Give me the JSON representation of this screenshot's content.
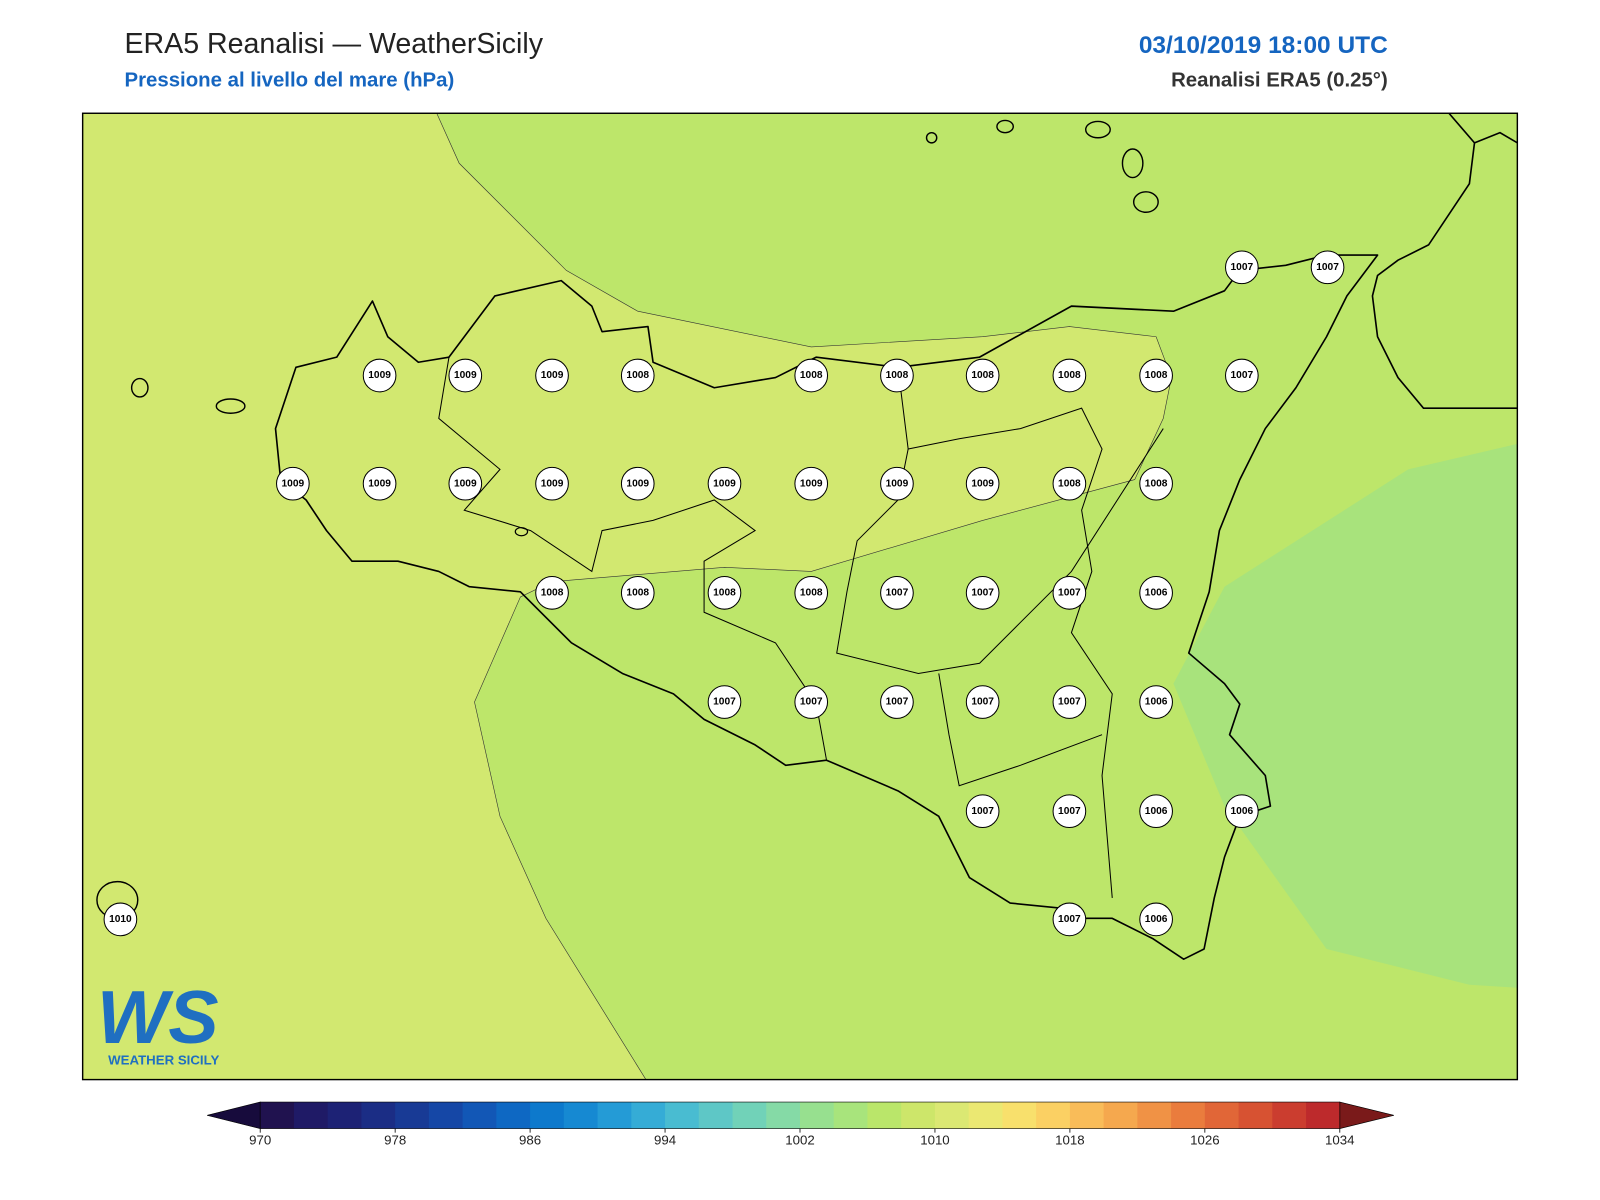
{
  "header": {
    "title": "ERA5 Reanalisi — WeatherSicily",
    "subtitle": "Pressione al livello del mare (hPa)",
    "datetime": "03/10/2019 18:00 UTC",
    "source": "Reanalisi ERA5 (0.25°)"
  },
  "stations": [
    1007,
    1007,
    1009,
    1009,
    1009,
    1008,
    1008,
    1008,
    1008,
    1008,
    1008,
    1007,
    1009,
    1009,
    1009,
    1009,
    1009,
    1009,
    1009,
    1009,
    1009,
    1008,
    1008,
    1008,
    1008,
    1008,
    1008,
    1007,
    1007,
    1007,
    1006,
    1007,
    1007,
    1007,
    1007,
    1007,
    1006,
    1007,
    1007,
    1006,
    1006,
    1010,
    1007,
    1006
  ],
  "colorbar": {
    "min": 970,
    "max": 1034,
    "ticks": [
      970,
      978,
      986,
      994,
      1002,
      1010,
      1018,
      1026,
      1034
    ],
    "colors": [
      "#20124f",
      "#1f1a66",
      "#1d2275",
      "#1b2d85",
      "#183a95",
      "#1547a6",
      "#1257b6",
      "#0e68c3",
      "#0d79cc",
      "#1689d2",
      "#249bd6",
      "#35acd6",
      "#49bcd1",
      "#5ec7c6",
      "#71d2b8",
      "#85daa6",
      "#97e08f",
      "#a8e47c",
      "#bae66a",
      "#cde66a",
      "#dbe873",
      "#ebe872",
      "#f8e06c",
      "#fbd063",
      "#f9bc59",
      "#f5a84e",
      "#f09245",
      "#ea7c3d",
      "#e16637",
      "#d75232",
      "#cb3d2f",
      "#bd2a2c"
    ],
    "under_color": "#170b3c",
    "over_color": "#7a1a1a"
  },
  "logo": {
    "mark": "WS",
    "text": "WEATHER SICILY"
  }
}
